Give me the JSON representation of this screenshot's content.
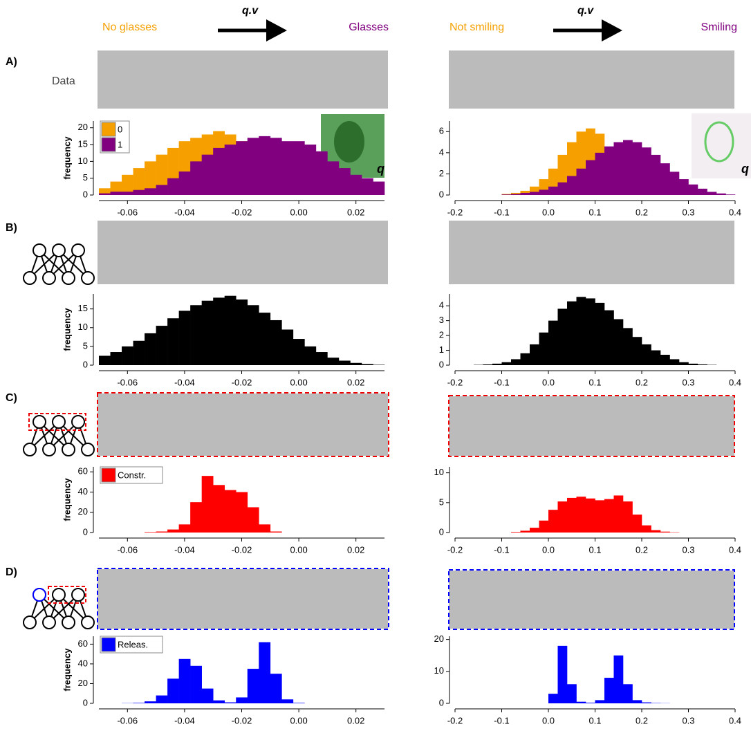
{
  "header": {
    "left_start": "No glasses",
    "left_arrow": "q.v",
    "left_end": "Glasses",
    "right_start": "Not smiling",
    "right_arrow": "q.v",
    "right_end": "Smiling"
  },
  "rows": [
    {
      "label": "A)",
      "sublabel": "Data"
    },
    {
      "label": "B)"
    },
    {
      "label": "C)"
    },
    {
      "label": "D)"
    }
  ],
  "insets": [
    "q",
    "q"
  ],
  "chart_data": [
    {
      "type": "histogram",
      "y_label": "frequency",
      "legend": "upper left",
      "bins": [
        -0.07,
        -0.066,
        -0.062,
        -0.058,
        -0.054,
        -0.05,
        -0.046,
        -0.042,
        -0.038,
        -0.034,
        -0.03,
        -0.026,
        -0.022,
        -0.018,
        -0.014,
        -0.01,
        -0.006,
        -0.002,
        0.002,
        0.006,
        0.01,
        0.014,
        0.018,
        0.022,
        0.026,
        0.03
      ],
      "series": [
        {
          "name": "0",
          "color": "#f5a000",
          "values": [
            2,
            4,
            6,
            8,
            10,
            12,
            14,
            16,
            17,
            18,
            19,
            18,
            16,
            14,
            12,
            10,
            7,
            5,
            3,
            2,
            1,
            0.5,
            0,
            0,
            0
          ]
        },
        {
          "name": "1",
          "color": "#800080",
          "values": [
            0.5,
            1,
            1,
            1.5,
            2,
            3,
            5,
            7,
            10,
            12,
            14,
            15,
            16,
            17,
            17.5,
            17,
            16,
            16,
            15,
            13,
            10,
            8,
            6,
            5,
            4
          ]
        }
      ],
      "xlim": [
        -0.07,
        0.03
      ],
      "xticks": [
        -0.06,
        -0.04,
        -0.02,
        {
          "value": 0,
          "label": "0.00"
        },
        0.02
      ],
      "ylim": [
        0,
        22
      ],
      "yticks": [
        0,
        5,
        10,
        15,
        20
      ]
    },
    {
      "type": "histogram",
      "bins": [
        -0.2,
        -0.18,
        -0.16,
        -0.14,
        -0.12,
        -0.1,
        -0.08,
        -0.06,
        -0.04,
        -0.02,
        0,
        0.02,
        0.04,
        0.06,
        0.08,
        0.1,
        0.12,
        0.14,
        0.16,
        0.18,
        0.2,
        0.22,
        0.24,
        0.26,
        0.28,
        0.3,
        0.32,
        0.34,
        0.36,
        0.38,
        0.4
      ],
      "series": [
        {
          "color": "#f5a000",
          "values": [
            0,
            0,
            0,
            0,
            0,
            0.1,
            0.2,
            0.4,
            0.8,
            1.5,
            2.5,
            3.8,
            5,
            6,
            6.3,
            5.8,
            4.5,
            2.5,
            1,
            0.3,
            0.1,
            0,
            0,
            0,
            0,
            0,
            0,
            0,
            0,
            0
          ]
        },
        {
          "color": "#800080",
          "values": [
            0,
            0,
            0,
            0,
            0,
            0.05,
            0.1,
            0.2,
            0.3,
            0.5,
            0.8,
            1.2,
            1.8,
            2.5,
            3.3,
            4,
            4.6,
            5,
            5.2,
            5,
            4.5,
            3.8,
            3,
            2.2,
            1.5,
            1,
            0.6,
            0.3,
            0.15,
            0.05
          ]
        }
      ],
      "xlim": [
        -0.2,
        0.4
      ],
      "xticks": [
        -0.2,
        -0.1,
        {
          "value": 0,
          "label": "0.0"
        },
        0.1,
        0.2,
        0.3,
        0.4
      ],
      "ylim": [
        0,
        7
      ],
      "yticks": [
        0,
        2,
        4,
        6
      ]
    },
    {
      "type": "histogram",
      "y_label": "frequency",
      "bins": [
        -0.07,
        -0.066,
        -0.062,
        -0.058,
        -0.054,
        -0.05,
        -0.046,
        -0.042,
        -0.038,
        -0.034,
        -0.03,
        -0.026,
        -0.022,
        -0.018,
        -0.014,
        -0.01,
        -0.006,
        -0.002,
        0.002,
        0.006,
        0.01,
        0.014,
        0.018,
        0.022,
        0.026,
        0.03
      ],
      "series": [
        {
          "color": "#000000",
          "values": [
            2.5,
            3.5,
            5,
            6.5,
            8.5,
            10.5,
            12.5,
            14.5,
            16,
            17.2,
            18,
            18.5,
            17.5,
            16,
            14,
            12,
            9.5,
            7,
            5,
            3.5,
            2,
            1.2,
            0.6,
            0.3,
            0.1
          ]
        }
      ],
      "xlim": [
        -0.07,
        0.03
      ],
      "xticks": [
        -0.06,
        -0.04,
        -0.02,
        {
          "value": 0,
          "label": "0.00"
        },
        0.02
      ],
      "ylim": [
        0,
        19
      ],
      "yticks": [
        0,
        5,
        10,
        15
      ]
    },
    {
      "type": "histogram",
      "bins": [
        -0.2,
        -0.18,
        -0.16,
        -0.14,
        -0.12,
        -0.1,
        -0.08,
        -0.06,
        -0.04,
        -0.02,
        0,
        0.02,
        0.04,
        0.06,
        0.08,
        0.1,
        0.12,
        0.14,
        0.16,
        0.18,
        0.2,
        0.22,
        0.24,
        0.26,
        0.28,
        0.3,
        0.32,
        0.34,
        0.36,
        0.38,
        0.4
      ],
      "series": [
        {
          "color": "#000000",
          "values": [
            0,
            0,
            0.02,
            0.05,
            0.1,
            0.2,
            0.4,
            0.8,
            1.4,
            2.2,
            3,
            3.8,
            4.3,
            4.6,
            4.5,
            4.2,
            3.7,
            3.1,
            2.5,
            1.9,
            1.4,
            1,
            0.7,
            0.4,
            0.2,
            0.1,
            0.05,
            0.02,
            0,
            0
          ]
        }
      ],
      "xlim": [
        -0.2,
        0.4
      ],
      "xticks": [
        -0.2,
        -0.1,
        {
          "value": 0,
          "label": "0.0"
        },
        0.1,
        0.2,
        0.3,
        0.4
      ],
      "ylim": [
        0,
        4.8
      ],
      "yticks": [
        0,
        1,
        2,
        3,
        4
      ]
    },
    {
      "type": "histogram",
      "y_label": "frequency",
      "legend": "upper left",
      "bins": [
        -0.07,
        -0.066,
        -0.062,
        -0.058,
        -0.054,
        -0.05,
        -0.046,
        -0.042,
        -0.038,
        -0.034,
        -0.03,
        -0.026,
        -0.022,
        -0.018,
        -0.014,
        -0.01,
        -0.006,
        -0.002,
        0.002,
        0.006,
        0.01,
        0.014,
        0.018,
        0.022,
        0.026,
        0.03
      ],
      "series": [
        {
          "name": "Constr.",
          "color": "#ff0000",
          "values": [
            0,
            0,
            0,
            0,
            0.5,
            1,
            3,
            8,
            30,
            56,
            47,
            42,
            40,
            25,
            8,
            1,
            0,
            0,
            0,
            0,
            0,
            0,
            0,
            0,
            0
          ]
        }
      ],
      "xlim": [
        -0.07,
        0.03
      ],
      "xticks": [
        -0.06,
        -0.04,
        -0.02,
        {
          "value": 0,
          "label": "0.00"
        },
        0.02
      ],
      "ylim": [
        0,
        65
      ],
      "yticks": [
        0,
        20,
        40,
        60
      ]
    },
    {
      "type": "histogram",
      "bins": [
        -0.2,
        -0.18,
        -0.16,
        -0.14,
        -0.12,
        -0.1,
        -0.08,
        -0.06,
        -0.04,
        -0.02,
        0,
        0.02,
        0.04,
        0.06,
        0.08,
        0.1,
        0.12,
        0.14,
        0.16,
        0.18,
        0.2,
        0.22,
        0.24,
        0.26,
        0.28,
        0.3,
        0.32,
        0.34,
        0.36,
        0.38,
        0.4
      ],
      "series": [
        {
          "color": "#ff0000",
          "values": [
            0,
            0,
            0,
            0,
            0,
            0,
            0.1,
            0.3,
            0.8,
            2,
            3.8,
            5.2,
            5.8,
            6,
            5.7,
            5.4,
            5.6,
            6.2,
            5.2,
            3,
            1.2,
            0.4,
            0.15,
            0.05,
            0,
            0,
            0,
            0,
            0,
            0
          ]
        }
      ],
      "xlim": [
        -0.2,
        0.4
      ],
      "xticks": [
        -0.2,
        -0.1,
        {
          "value": 0,
          "label": "0.0"
        },
        0.1,
        0.2,
        0.3,
        0.4
      ],
      "ylim": [
        0,
        11
      ],
      "yticks": [
        0,
        5,
        10
      ]
    },
    {
      "type": "histogram",
      "y_label": "frequency",
      "legend": "upper left",
      "bins": [
        -0.07,
        -0.066,
        -0.062,
        -0.058,
        -0.054,
        -0.05,
        -0.046,
        -0.042,
        -0.038,
        -0.034,
        -0.03,
        -0.026,
        -0.022,
        -0.018,
        -0.014,
        -0.01,
        -0.006,
        -0.002,
        0.002,
        0.006,
        0.01,
        0.014,
        0.018,
        0.022,
        0.026,
        0.03
      ],
      "series": [
        {
          "name": "Releas.",
          "color": "#0000ff",
          "values": [
            0,
            0,
            0.2,
            0.5,
            2,
            8,
            25,
            45,
            38,
            15,
            3,
            1,
            6,
            35,
            62,
            30,
            4,
            0.5,
            0,
            0,
            0,
            0,
            0,
            0,
            0
          ]
        }
      ],
      "xlim": [
        -0.07,
        0.03
      ],
      "xticks": [
        -0.06,
        -0.04,
        -0.02,
        {
          "value": 0,
          "label": "0.00"
        },
        0.02
      ],
      "ylim": [
        0,
        68
      ],
      "yticks": [
        0,
        20,
        40,
        60
      ]
    },
    {
      "type": "histogram",
      "bins": [
        -0.2,
        -0.18,
        -0.16,
        -0.14,
        -0.12,
        -0.1,
        -0.08,
        -0.06,
        -0.04,
        -0.02,
        0,
        0.02,
        0.04,
        0.06,
        0.08,
        0.1,
        0.12,
        0.14,
        0.16,
        0.18,
        0.2,
        0.22,
        0.24,
        0.26,
        0.28,
        0.3,
        0.32,
        0.34,
        0.36,
        0.38,
        0.4
      ],
      "series": [
        {
          "color": "#0000ff",
          "values": [
            0,
            0,
            0,
            0,
            0,
            0,
            0,
            0,
            0,
            0,
            3,
            18,
            6,
            0.5,
            0.2,
            1,
            8,
            15,
            6,
            1,
            0.3,
            0.1,
            0.05,
            0,
            0,
            0,
            0,
            0,
            0,
            0
          ]
        }
      ],
      "xlim": [
        -0.2,
        0.4
      ],
      "xticks": [
        -0.2,
        -0.1,
        {
          "value": 0,
          "label": "0.0"
        },
        0.1,
        0.2,
        0.3,
        0.4
      ],
      "ylim": [
        0,
        21
      ],
      "yticks": [
        0,
        10,
        20
      ]
    }
  ]
}
